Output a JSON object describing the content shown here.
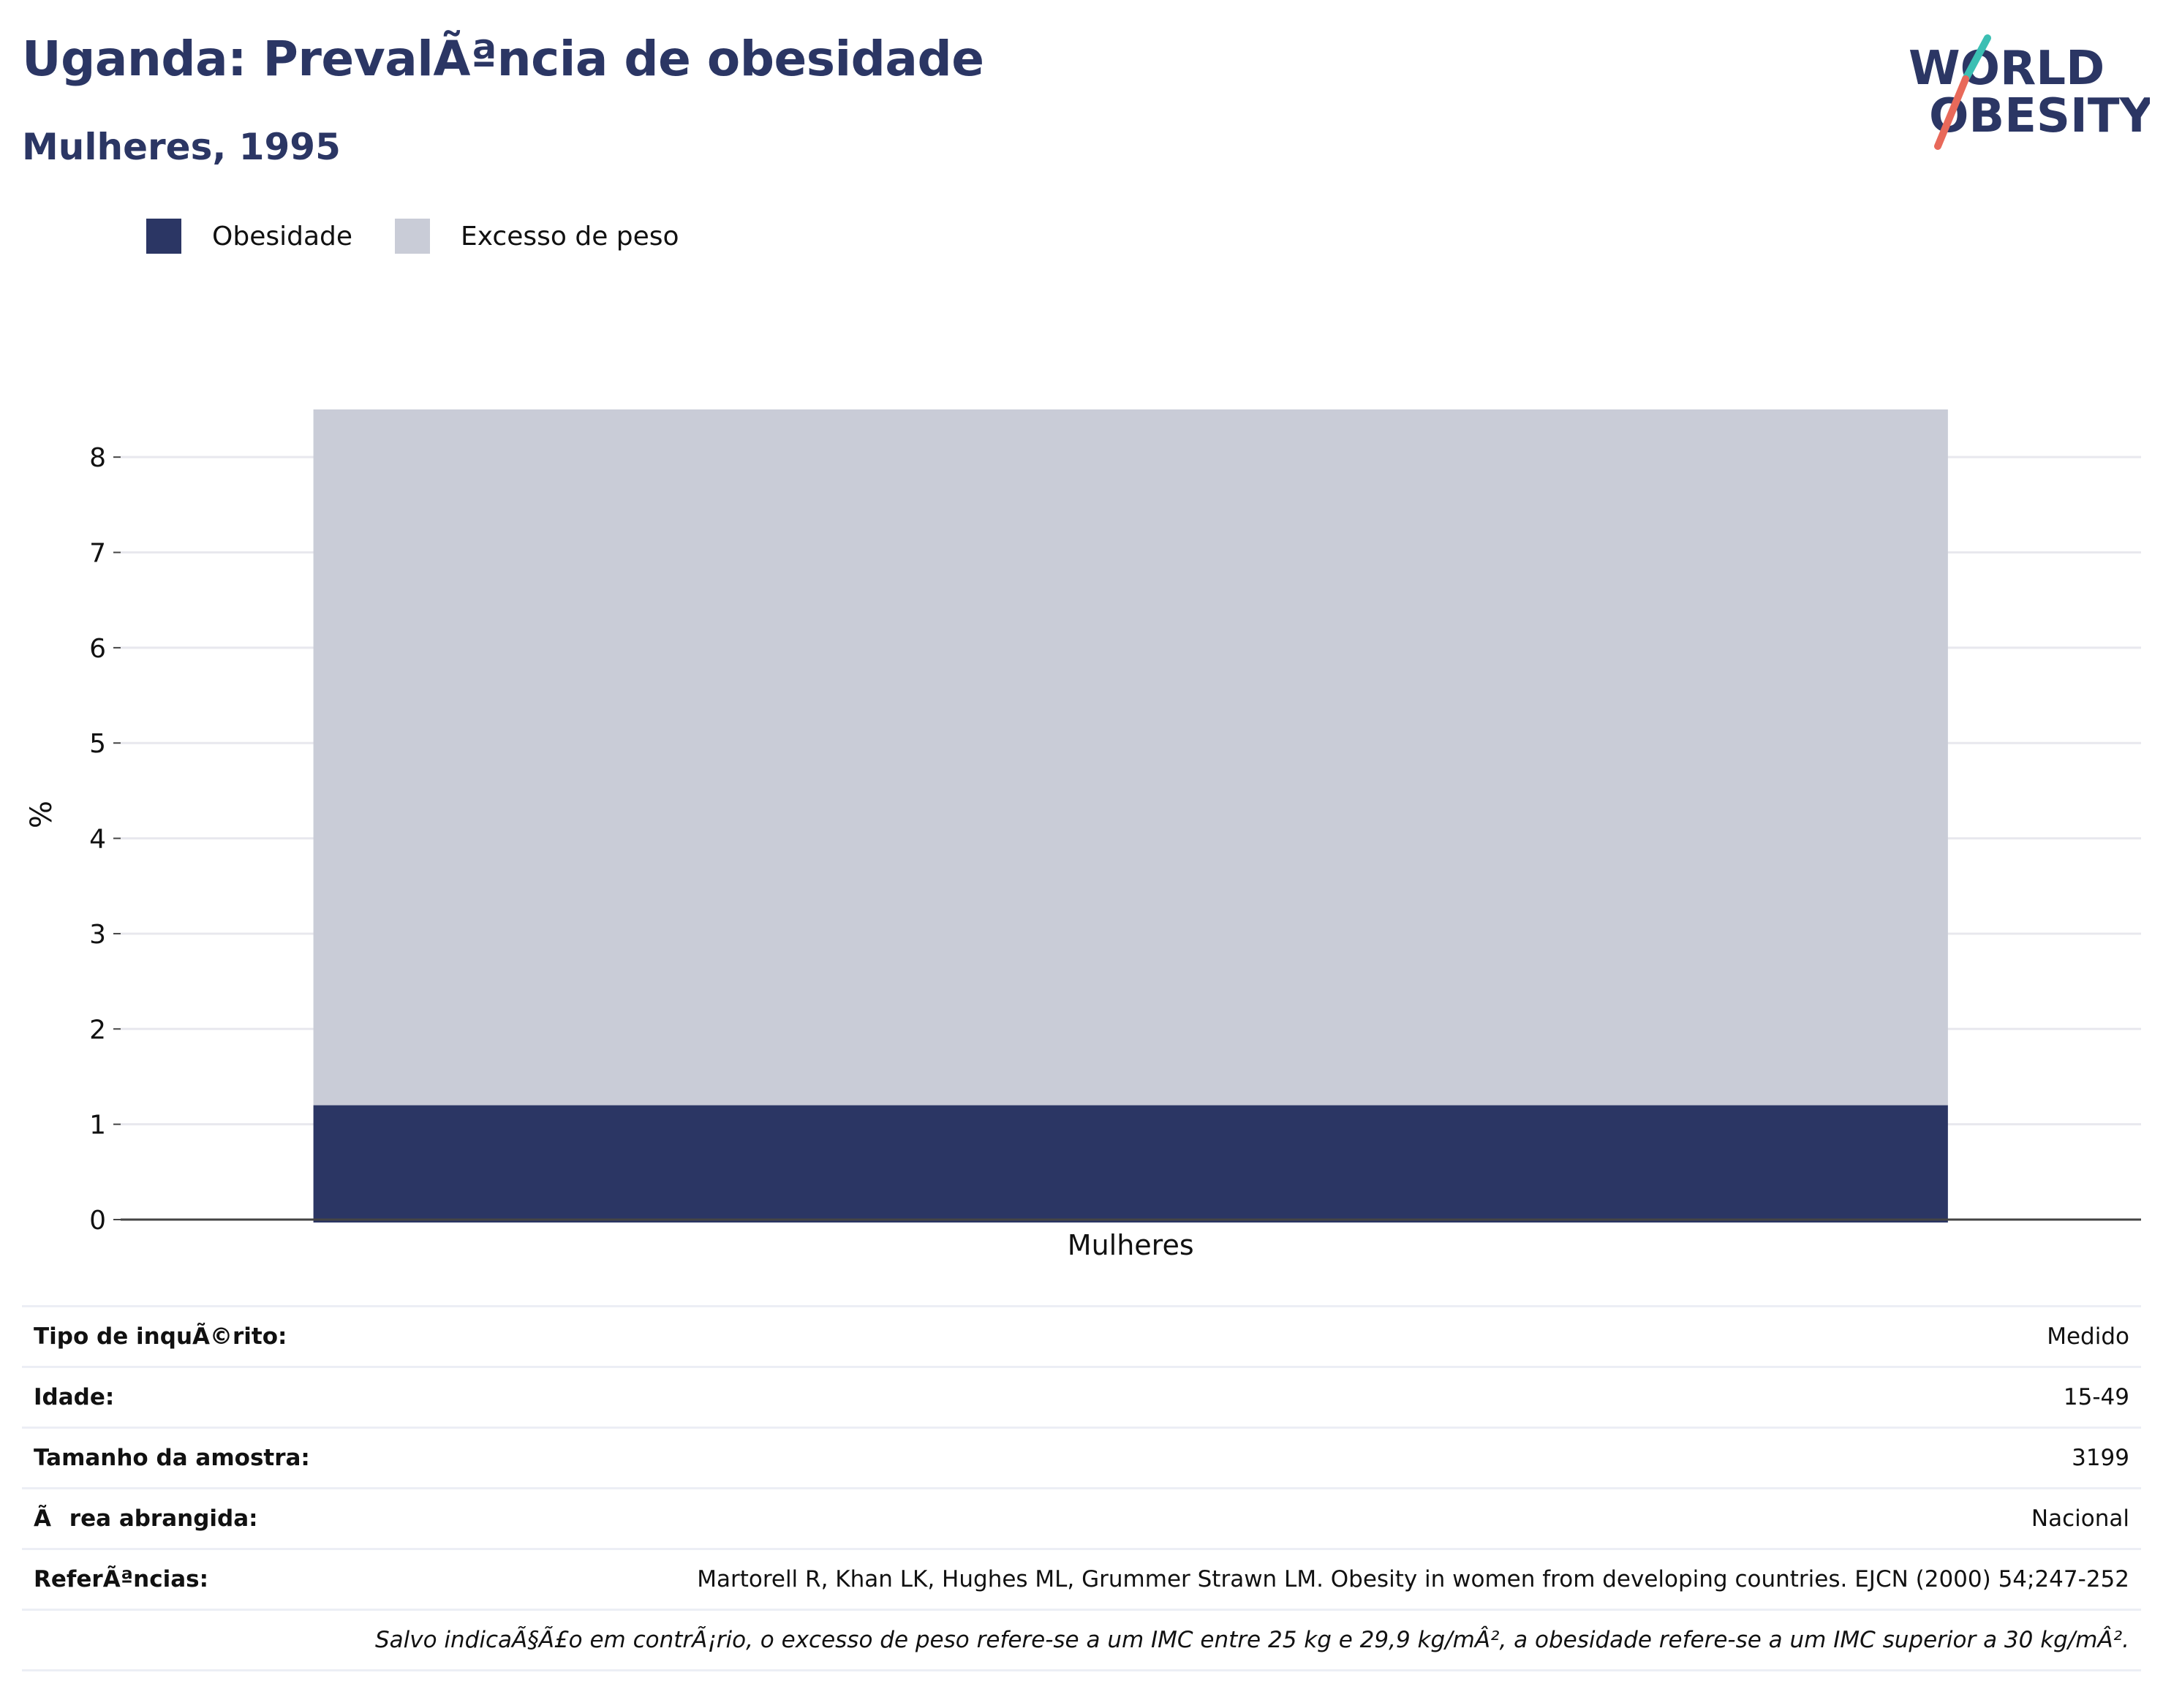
{
  "header": {
    "title": "Uganda: PrevalÃªncia de obesidade",
    "subtitle": "Mulheres, 1995"
  },
  "logo": {
    "line1": "WORLD",
    "line2": "OBESITY",
    "accent_teal": "#3bbfb3",
    "accent_coral": "#e8695a",
    "text_color": "#2b3664"
  },
  "legend": [
    {
      "label": "Obesidade",
      "color": "#2b3664"
    },
    {
      "label": "Excesso de peso",
      "color": "#c9ccd7"
    }
  ],
  "chart_data": {
    "type": "bar",
    "stacked": true,
    "categories": [
      "Mulheres"
    ],
    "series": [
      {
        "name": "Obesidade",
        "values": [
          1.2
        ],
        "color": "#2b3664"
      },
      {
        "name": "Excesso de peso",
        "values": [
          7.3
        ],
        "color": "#c9ccd7"
      }
    ],
    "ylabel": "%",
    "xlabel": "",
    "ylim": [
      0,
      8.5
    ],
    "yticks": [
      0,
      1,
      2,
      3,
      4,
      5,
      6,
      7,
      8
    ],
    "grid": true,
    "legend_position": "top-left"
  },
  "info": {
    "rows": [
      {
        "label": "Tipo de inquÃ©rito:",
        "value": "Medido"
      },
      {
        "label": "Idade:",
        "value": "15-49"
      },
      {
        "label": "Tamanho da amostra:",
        "value": "3199"
      },
      {
        "label": "Ãrea abrangida:",
        "value": "Nacional"
      },
      {
        "label": "ReferÃªncias:",
        "value": "Martorell R, Khan LK, Hughes ML, Grummer Strawn LM. Obesity in women from developing countries. EJCN (2000) 54;247-252"
      }
    ],
    "note": "Salvo indicaÃ§Ã£o em contrÃ¡rio, o excesso de peso refere-se a um IMC entre 25 kg e 29,9 kg/mÂ², a obesidade refere-se a um IMC superior a 30 kg/mÂ²."
  }
}
